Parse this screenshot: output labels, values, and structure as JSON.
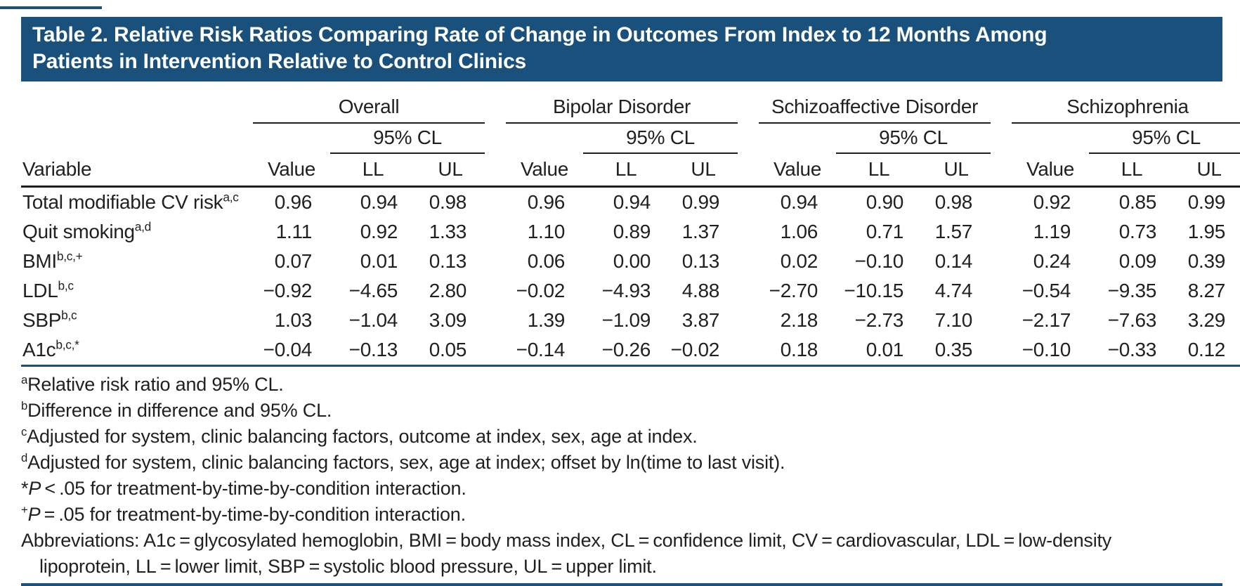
{
  "title": {
    "line1": "Table 2. Relative Risk Ratios Comparing Rate of Change in Outcomes From Index to 12 Months Among",
    "line2": "Patients in Intervention Relative to Control Clinics"
  },
  "colors": {
    "accent_navy": "#1A517C",
    "rule_black": "#1E1E1E",
    "text": "#231F20",
    "title_text": "#FFFFFF",
    "background": "#FFFFFF"
  },
  "table": {
    "variable_header": "Variable",
    "groups": [
      {
        "label": "Overall",
        "cl_label": "95% CL"
      },
      {
        "label": "Bipolar Disorder",
        "cl_label": "95% CL"
      },
      {
        "label": "Schizoaffective Disorder",
        "cl_label": "95% CL"
      },
      {
        "label": "Schizophrenia",
        "cl_label": "95% CL"
      }
    ],
    "sub_headers": {
      "value": "Value",
      "ll": "LL",
      "ul": "UL"
    },
    "rows": [
      {
        "variable": "Total modifiable CV risk",
        "sup": "a,c",
        "values": [
          "0.96",
          "0.94",
          "0.98",
          "0.96",
          "0.94",
          "0.99",
          "0.94",
          "0.90",
          "0.98",
          "0.92",
          "0.85",
          "0.99"
        ]
      },
      {
        "variable": "Quit smoking",
        "sup": "a,d",
        "values": [
          "1.11",
          "0.92",
          "1.33",
          "1.10",
          "0.89",
          "1.37",
          "1.06",
          "0.71",
          "1.57",
          "1.19",
          "0.73",
          "1.95"
        ]
      },
      {
        "variable": "BMI",
        "sup": "b,c,+",
        "values": [
          "0.07",
          "0.01",
          "0.13",
          "0.06",
          "0.00",
          "0.13",
          "0.02",
          "−0.10",
          "0.14",
          "0.24",
          "0.09",
          "0.39"
        ]
      },
      {
        "variable": "LDL",
        "sup": "b,c",
        "values": [
          "−0.92",
          "−4.65",
          "2.80",
          "−0.02",
          "−4.93",
          "4.88",
          "−2.70",
          "−10.15",
          "4.74",
          "−0.54",
          "−9.35",
          "8.27"
        ]
      },
      {
        "variable": "SBP",
        "sup": "b,c",
        "values": [
          "1.03",
          "−1.04",
          "3.09",
          "1.39",
          "−1.09",
          "3.87",
          "2.18",
          "−2.73",
          "7.10",
          "−2.17",
          "−7.63",
          "3.29"
        ]
      },
      {
        "variable": "A1c",
        "sup": "b,c,*",
        "values": [
          "−0.04",
          "−0.13",
          "0.05",
          "−0.14",
          "−0.26",
          "−0.02",
          "0.18",
          "0.01",
          "0.35",
          "−0.10",
          "−0.33",
          "0.12"
        ]
      }
    ]
  },
  "footnotes": [
    {
      "marker": "a",
      "text": "Relative risk ratio and 95% CL."
    },
    {
      "marker": "b",
      "text": "Difference in difference and 95% CL."
    },
    {
      "marker": "c",
      "text": "Adjusted for system, clinic balancing factors, outcome at index, sex, age at index."
    },
    {
      "marker": "d",
      "text": "Adjusted for system, clinic balancing factors, sex, age at index; offset by ln(time to last visit)."
    },
    {
      "marker": "*",
      "p": "P",
      "text": " < .05 for treatment-by-time-by-condition interaction."
    },
    {
      "marker": "+",
      "p": "P",
      "text": " = .05 for treatment-by-time-by-condition interaction."
    },
    {
      "text": "Abbreviations: A1c = glycosylated hemoglobin, BMI = body mass index, CL = confidence limit, CV = cardiovascular, LDL = low-density lipoprotein, LL = lower limit, SBP = systolic blood pressure, UL = upper limit."
    }
  ]
}
